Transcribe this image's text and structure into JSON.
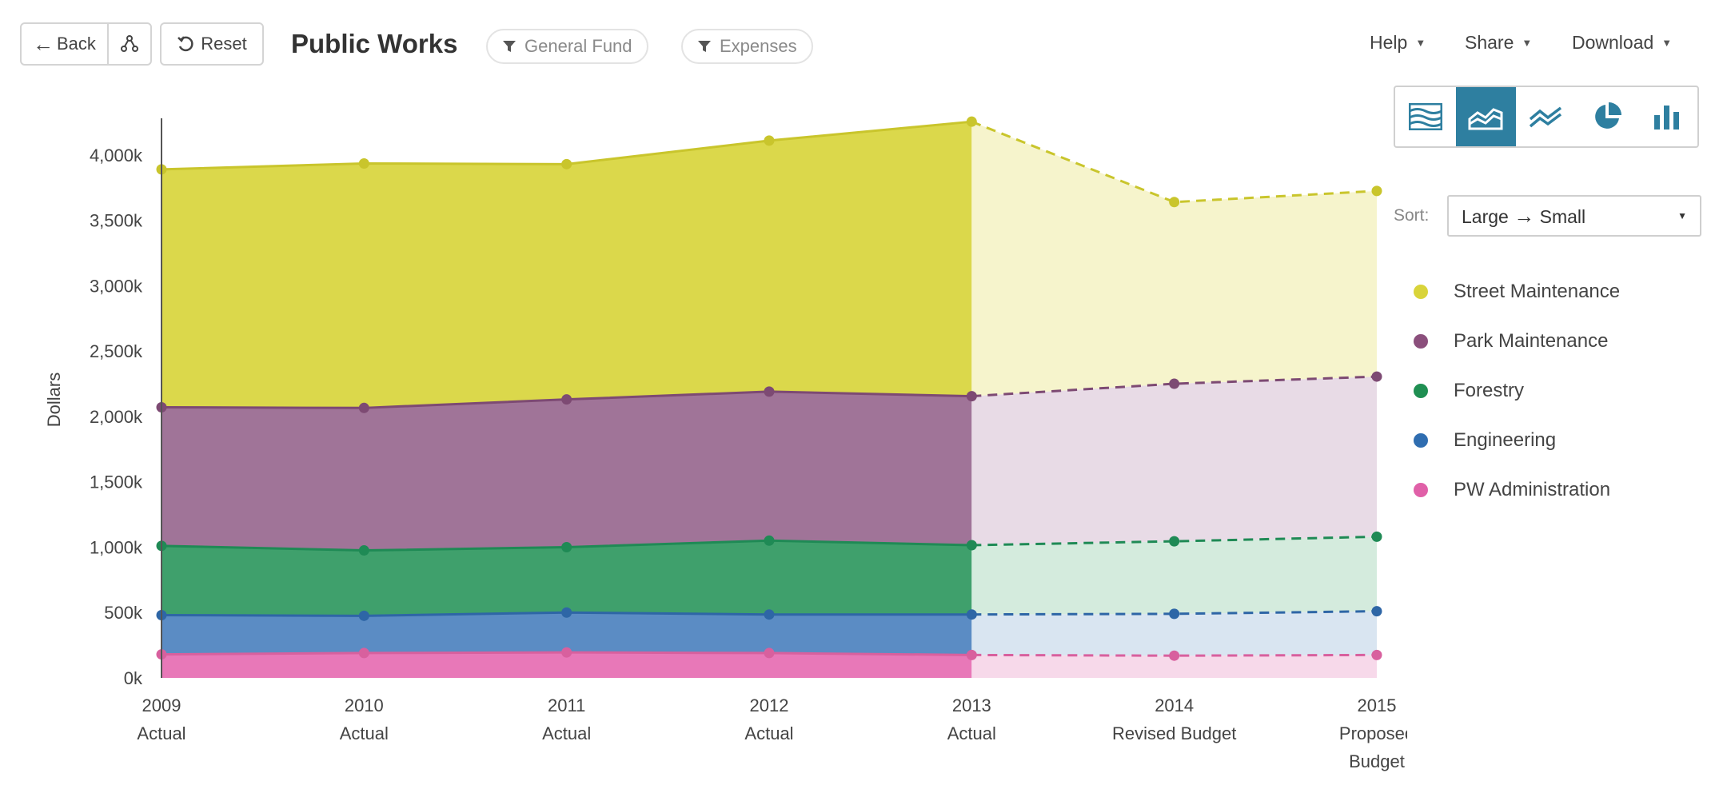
{
  "toolbar": {
    "back_label": "Back",
    "reset_label": "Reset",
    "title": "Public Works",
    "filters": [
      "General Fund",
      "Expenses"
    ],
    "menus": [
      "Help",
      "Share",
      "Download"
    ]
  },
  "chart_types": [
    {
      "name": "stacked-stream",
      "active": false
    },
    {
      "name": "stacked-area",
      "active": true
    },
    {
      "name": "line",
      "active": false
    },
    {
      "name": "pie",
      "active": false
    },
    {
      "name": "bar",
      "active": false
    }
  ],
  "sort": {
    "label": "Sort:",
    "from": "Large",
    "arrow": "→",
    "to": "Small"
  },
  "legend": [
    {
      "label": "Street Maintenance",
      "color": "#d9d43a"
    },
    {
      "label": "Park Maintenance",
      "color": "#8b4f7c"
    },
    {
      "label": "Forestry",
      "color": "#1f8f52"
    },
    {
      "label": "Engineering",
      "color": "#2f6db0"
    },
    {
      "label": "PW Administration",
      "color": "#e060a8"
    }
  ],
  "chart_data": {
    "type": "area",
    "stacked": true,
    "ylabel": "Dollars",
    "ylim": [
      0,
      4250
    ],
    "y_unit_suffix": "k",
    "y_ticks": [
      0,
      500,
      1000,
      1500,
      2000,
      2500,
      3000,
      3500,
      4000
    ],
    "y_tick_labels": [
      "0k",
      "500k",
      "1,000k",
      "1,500k",
      "2,000k",
      "2,500k",
      "3,000k",
      "3,500k",
      "4,000k"
    ],
    "categories": [
      [
        "2009",
        "Actual"
      ],
      [
        "2010",
        "Actual"
      ],
      [
        "2011",
        "Actual"
      ],
      [
        "2012",
        "Actual"
      ],
      [
        "2013",
        "Actual"
      ],
      [
        "2014",
        "Revised Budget"
      ],
      [
        "2015",
        "Proposed",
        "Budget"
      ]
    ],
    "actual_count": 5,
    "series": [
      {
        "name": "PW Administration",
        "color": "#e878b8",
        "values": [
          180,
          190,
          195,
          190,
          175,
          170,
          175
        ]
      },
      {
        "name": "Engineering",
        "color": "#5b8cc4",
        "values": [
          300,
          285,
          305,
          295,
          310,
          320,
          335
        ]
      },
      {
        "name": "Forestry",
        "color": "#3fa06c",
        "values": [
          530,
          500,
          500,
          565,
          530,
          555,
          570
        ]
      },
      {
        "name": "Park Maintenance",
        "color": "#a07498",
        "values": [
          1060,
          1090,
          1130,
          1140,
          1140,
          1205,
          1225
        ]
      },
      {
        "name": "Street Maintenance",
        "color": "#dbd84b",
        "values": [
          1820,
          1870,
          1800,
          1920,
          2100,
          1390,
          1420
        ]
      }
    ],
    "line_colors": [
      "#d8609e",
      "#2e66a6",
      "#1f8a55",
      "#7d4a73",
      "#c9c52c"
    ],
    "projected_fill_colors": [
      "#f7d9ea",
      "#d9e5f1",
      "#d4ebdd",
      "#e8dbe6",
      "#f6f4cc"
    ]
  }
}
